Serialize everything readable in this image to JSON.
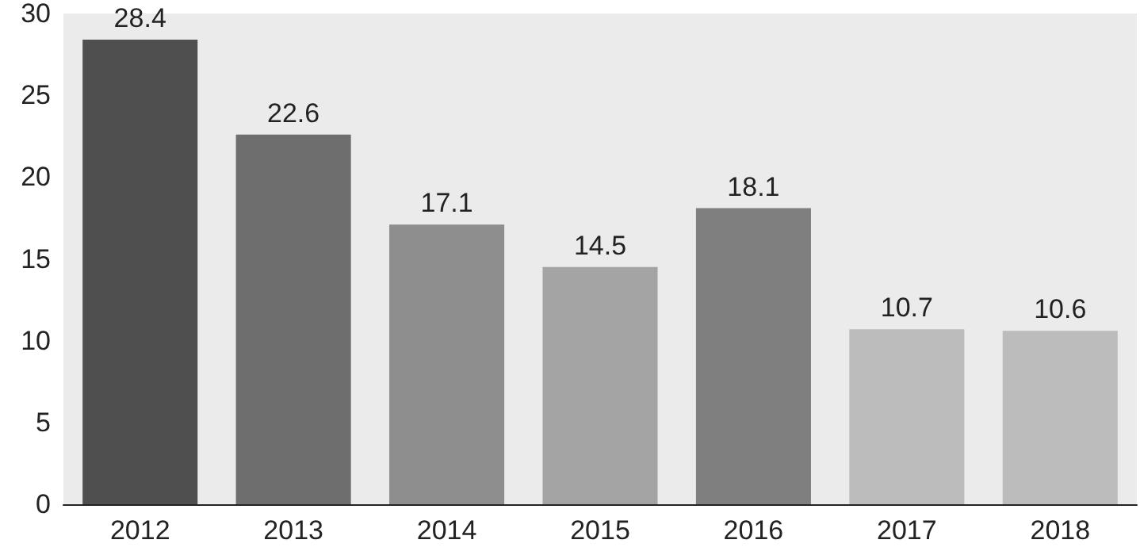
{
  "chart_data": {
    "type": "bar",
    "categories": [
      "2012",
      "2013",
      "2014",
      "2015",
      "2016",
      "2017",
      "2018"
    ],
    "values": [
      28.4,
      22.6,
      17.1,
      14.5,
      18.1,
      10.7,
      10.6
    ],
    "colors": [
      "#4f4f4f",
      "#6e6e6e",
      "#8e8e8e",
      "#a4a4a4",
      "#7f7f7f",
      "#bcbcbc",
      "#bcbcbc"
    ],
    "ylim": [
      0,
      30
    ],
    "yticks": [
      0,
      5,
      10,
      15,
      20,
      25,
      30
    ],
    "grid": false,
    "data_labels": true
  }
}
